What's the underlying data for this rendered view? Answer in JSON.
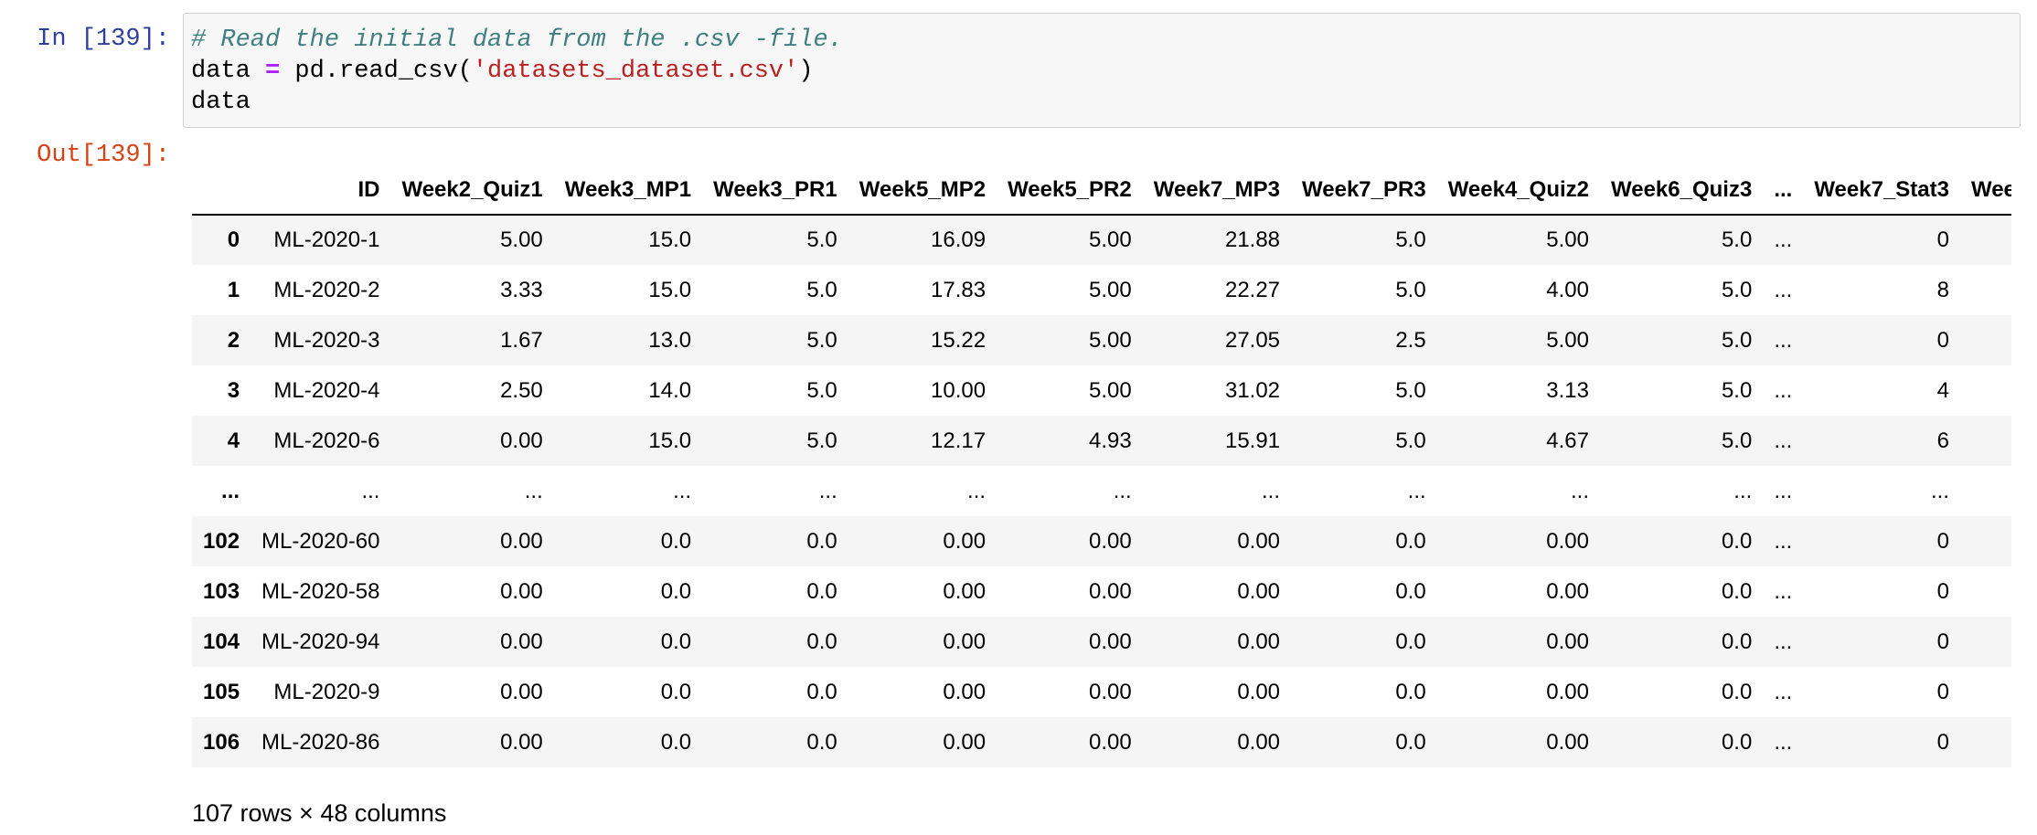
{
  "input_prompt": "In [139]:",
  "output_prompt": "Out[139]:",
  "code": {
    "line1_comment": "# Read the initial data from the .csv -file.",
    "line2_var": "data ",
    "line2_op": "=",
    "line2_call": " pd.read_csv(",
    "line2_str": "'datasets_dataset.csv'",
    "line2_close": ")",
    "line3": "data"
  },
  "table": {
    "columns": [
      "",
      "ID",
      "Week2_Quiz1",
      "Week3_MP1",
      "Week3_PR1",
      "Week5_MP2",
      "Week5_PR2",
      "Week7_MP3",
      "Week7_PR3",
      "Week4_Quiz2",
      "Week6_Quiz3",
      "...",
      "Week7_Stat3",
      "Wee"
    ],
    "rows": [
      [
        "0",
        "ML-2020-1",
        "5.00",
        "15.0",
        "5.0",
        "16.09",
        "5.00",
        "21.88",
        "5.0",
        "5.00",
        "5.0",
        "...",
        "0",
        ""
      ],
      [
        "1",
        "ML-2020-2",
        "3.33",
        "15.0",
        "5.0",
        "17.83",
        "5.00",
        "22.27",
        "5.0",
        "4.00",
        "5.0",
        "...",
        "8",
        ""
      ],
      [
        "2",
        "ML-2020-3",
        "1.67",
        "13.0",
        "5.0",
        "15.22",
        "5.00",
        "27.05",
        "2.5",
        "5.00",
        "5.0",
        "...",
        "0",
        ""
      ],
      [
        "3",
        "ML-2020-4",
        "2.50",
        "14.0",
        "5.0",
        "10.00",
        "5.00",
        "31.02",
        "5.0",
        "3.13",
        "5.0",
        "...",
        "4",
        ""
      ],
      [
        "4",
        "ML-2020-6",
        "0.00",
        "15.0",
        "5.0",
        "12.17",
        "4.93",
        "15.91",
        "5.0",
        "4.67",
        "5.0",
        "...",
        "6",
        ""
      ],
      [
        "...",
        "...",
        "...",
        "...",
        "...",
        "...",
        "...",
        "...",
        "...",
        "...",
        "...",
        "...",
        "...",
        ""
      ],
      [
        "102",
        "ML-2020-60",
        "0.00",
        "0.0",
        "0.0",
        "0.00",
        "0.00",
        "0.00",
        "0.0",
        "0.00",
        "0.0",
        "...",
        "0",
        ""
      ],
      [
        "103",
        "ML-2020-58",
        "0.00",
        "0.0",
        "0.0",
        "0.00",
        "0.00",
        "0.00",
        "0.0",
        "0.00",
        "0.0",
        "...",
        "0",
        ""
      ],
      [
        "104",
        "ML-2020-94",
        "0.00",
        "0.0",
        "0.0",
        "0.00",
        "0.00",
        "0.00",
        "0.0",
        "0.00",
        "0.0",
        "...",
        "0",
        ""
      ],
      [
        "105",
        "ML-2020-9",
        "0.00",
        "0.0",
        "0.0",
        "0.00",
        "0.00",
        "0.00",
        "0.0",
        "0.00",
        "0.0",
        "...",
        "0",
        ""
      ],
      [
        "106",
        "ML-2020-86",
        "0.00",
        "0.0",
        "0.0",
        "0.00",
        "0.00",
        "0.00",
        "0.0",
        "0.00",
        "0.0",
        "...",
        "0",
        ""
      ]
    ]
  },
  "shape_text": "107 rows × 48 columns"
}
